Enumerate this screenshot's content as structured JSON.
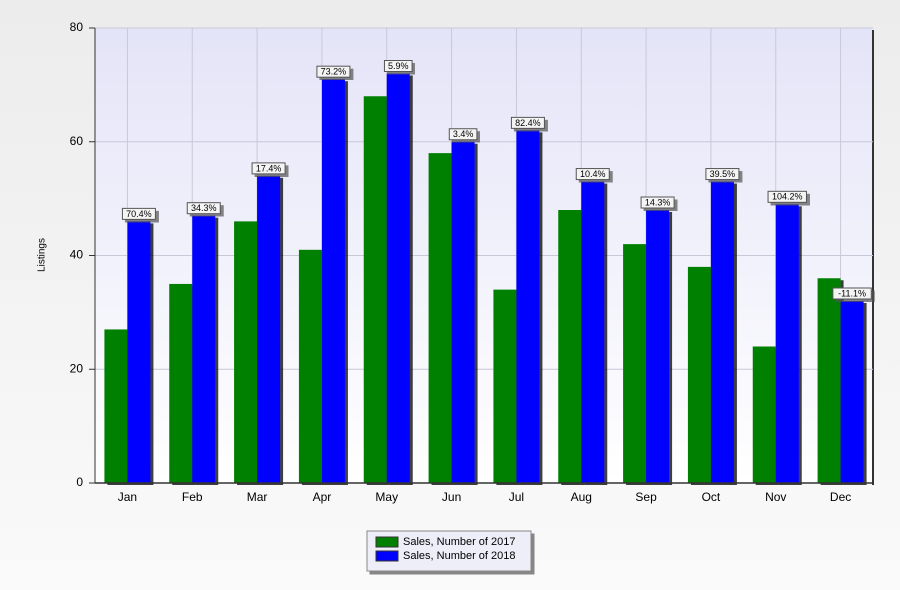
{
  "chart_data": {
    "type": "bar",
    "y_label": "Listings",
    "categories": [
      "Jan",
      "Feb",
      "Mar",
      "Apr",
      "May",
      "Jun",
      "Jul",
      "Aug",
      "Sep",
      "Oct",
      "Nov",
      "Dec"
    ],
    "series": [
      {
        "name": "Sales, Number of 2017",
        "color": "#008000",
        "values": [
          27,
          35,
          46,
          41,
          68,
          58,
          34,
          48,
          42,
          38,
          24,
          36
        ]
      },
      {
        "name": "Sales, Number of 2018",
        "color": "#0000ff",
        "values": [
          46,
          47,
          54,
          71,
          72,
          60,
          62,
          53,
          48,
          53,
          49,
          32
        ]
      }
    ],
    "percent_change": {
      "values": [
        70.4,
        34.3,
        17.4,
        73.2,
        5.9,
        3.4,
        82.4,
        10.4,
        14.3,
        39.5,
        104.2,
        -11.1
      ],
      "value_labels": [
        "70.4%",
        "34.3%",
        "17.4%",
        "73.2%",
        "5.9%",
        "3.4%",
        "82.4%",
        "10.4%",
        "14.3%",
        "39.5%",
        "104.2%",
        "-11.1%"
      ]
    },
    "ylim": [
      0,
      80
    ],
    "yticks": [
      0,
      20,
      40,
      60,
      80
    ],
    "grid": true
  }
}
